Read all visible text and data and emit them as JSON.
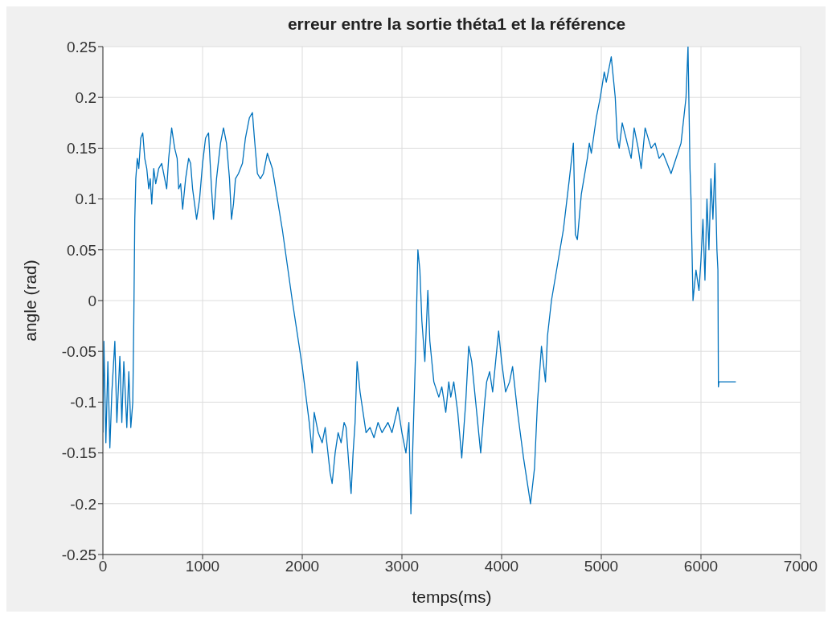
{
  "chart_data": {
    "type": "line",
    "title": "erreur entre la sortie théta1 et la référence",
    "xlabel": "temps(ms)",
    "ylabel": "angle (rad)",
    "xlim": [
      0,
      7000
    ],
    "xticks": [
      0,
      1000,
      2000,
      3000,
      4000,
      5000,
      6000,
      7000
    ],
    "ylim": [
      -0.25,
      0.25
    ],
    "yticks": [
      -0.25,
      -0.2,
      -0.15,
      -0.1,
      -0.05,
      0,
      0.05,
      0.1,
      0.15,
      0.2,
      0.25
    ],
    "grid": true,
    "marker": "none",
    "line_style": "solid",
    "series": [
      {
        "color": "#0072bd",
        "x": [
          0,
          10,
          30,
          50,
          70,
          90,
          120,
          140,
          170,
          190,
          210,
          240,
          260,
          280,
          300,
          310,
          320,
          330,
          345,
          360,
          380,
          400,
          420,
          440,
          460,
          475,
          490,
          510,
          530,
          560,
          590,
          620,
          640,
          660,
          690,
          720,
          745,
          760,
          780,
          800,
          830,
          860,
          880,
          900,
          940,
          970,
          1000,
          1030,
          1060,
          1090,
          1110,
          1140,
          1180,
          1210,
          1240,
          1270,
          1290,
          1310,
          1330,
          1360,
          1400,
          1430,
          1470,
          1500,
          1520,
          1550,
          1580,
          1610,
          1650,
          1700,
          1800,
          1900,
          2000,
          2070,
          2100,
          2120,
          2160,
          2200,
          2230,
          2280,
          2300,
          2330,
          2360,
          2390,
          2420,
          2440,
          2470,
          2490,
          2510,
          2530,
          2550,
          2580,
          2610,
          2640,
          2680,
          2720,
          2760,
          2800,
          2860,
          2900,
          2960,
          3000,
          3040,
          3070,
          3090,
          3110,
          3140,
          3160,
          3180,
          3200,
          3230,
          3260,
          3280,
          3320,
          3370,
          3400,
          3440,
          3470,
          3490,
          3520,
          3560,
          3600,
          3640,
          3670,
          3700,
          3740,
          3790,
          3830,
          3850,
          3880,
          3910,
          3940,
          3970,
          4000,
          4040,
          4080,
          4110,
          4160,
          4220,
          4290,
          4330,
          4360,
          4400,
          4440,
          4460,
          4500,
          4560,
          4620,
          4680,
          4720,
          4740,
          4760,
          4800,
          4860,
          4880,
          4900,
          4950,
          4990,
          5030,
          5050,
          5100,
          5140,
          5160,
          5180,
          5210,
          5260,
          5300,
          5330,
          5370,
          5400,
          5440,
          5500,
          5540,
          5580,
          5620,
          5660,
          5700,
          5750,
          5800,
          5850,
          5870,
          5890,
          5900,
          5920,
          5950,
          5980,
          6000,
          6020,
          6040,
          6060,
          6080,
          6100,
          6120,
          6140,
          6160,
          6170,
          6175,
          6180,
          6350
        ],
        "values": [
          -0.13,
          -0.04,
          -0.14,
          -0.06,
          -0.145,
          -0.09,
          -0.04,
          -0.12,
          -0.055,
          -0.12,
          -0.06,
          -0.125,
          -0.07,
          -0.125,
          -0.1,
          -0.02,
          0.08,
          0.12,
          0.14,
          0.13,
          0.16,
          0.165,
          0.14,
          0.13,
          0.11,
          0.12,
          0.095,
          0.13,
          0.115,
          0.13,
          0.135,
          0.12,
          0.11,
          0.14,
          0.17,
          0.15,
          0.14,
          0.11,
          0.115,
          0.09,
          0.12,
          0.14,
          0.135,
          0.11,
          0.08,
          0.1,
          0.135,
          0.16,
          0.165,
          0.11,
          0.08,
          0.12,
          0.155,
          0.17,
          0.155,
          0.12,
          0.08,
          0.095,
          0.12,
          0.125,
          0.135,
          0.16,
          0.18,
          0.185,
          0.16,
          0.125,
          0.12,
          0.125,
          0.145,
          0.13,
          0.07,
          0,
          -0.065,
          -0.12,
          -0.15,
          -0.11,
          -0.13,
          -0.14,
          -0.125,
          -0.17,
          -0.18,
          -0.15,
          -0.13,
          -0.14,
          -0.12,
          -0.125,
          -0.165,
          -0.19,
          -0.15,
          -0.12,
          -0.06,
          -0.09,
          -0.11,
          -0.13,
          -0.125,
          -0.135,
          -0.12,
          -0.13,
          -0.12,
          -0.13,
          -0.105,
          -0.13,
          -0.15,
          -0.12,
          -0.21,
          -0.14,
          -0.04,
          0.05,
          0.03,
          -0.02,
          -0.06,
          0.01,
          -0.04,
          -0.08,
          -0.095,
          -0.085,
          -0.11,
          -0.08,
          -0.095,
          -0.08,
          -0.11,
          -0.155,
          -0.1,
          -0.045,
          -0.06,
          -0.1,
          -0.15,
          -0.1,
          -0.08,
          -0.07,
          -0.09,
          -0.06,
          -0.03,
          -0.06,
          -0.09,
          -0.08,
          -0.065,
          -0.11,
          -0.155,
          -0.2,
          -0.165,
          -0.1,
          -0.045,
          -0.08,
          -0.035,
          0,
          0.035,
          0.07,
          0.12,
          0.155,
          0.065,
          0.06,
          0.105,
          0.14,
          0.155,
          0.145,
          0.18,
          0.2,
          0.225,
          0.215,
          0.24,
          0.2,
          0.16,
          0.15,
          0.175,
          0.155,
          0.14,
          0.17,
          0.15,
          0.13,
          0.17,
          0.15,
          0.155,
          0.14,
          0.145,
          0.135,
          0.125,
          0.14,
          0.155,
          0.2,
          0.25,
          0.13,
          0.1,
          0,
          0.03,
          0.01,
          0.04,
          0.08,
          0.02,
          0.1,
          0.05,
          0.12,
          0.08,
          0.135,
          0.05,
          0.03,
          -0.085,
          -0.08,
          -0.08
        ]
      }
    ]
  }
}
